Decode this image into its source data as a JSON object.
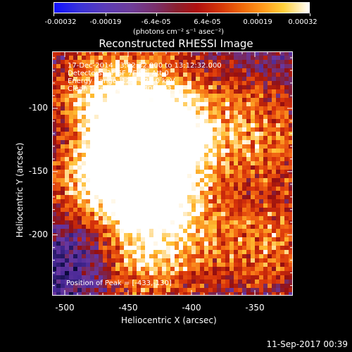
{
  "colorbar": {
    "tick_labels": [
      "-0.00032",
      "-0.00019",
      "-6.4e-05",
      "6.4e-05",
      "0.00019",
      "0.00032"
    ],
    "units_label": "(photons cm⁻² s⁻¹ asec⁻²)"
  },
  "plot": {
    "title": "Reconstructed RHESSI Image",
    "xlabel": "Heliocentric X (arcsec)",
    "ylabel": "Heliocentric Y (arcsec)",
    "x_ticks": [
      "-500",
      "-450",
      "-400",
      "-350"
    ],
    "y_ticks": [
      "-100",
      "-150",
      "-200"
    ]
  },
  "info": {
    "time_range": "17-Dec-2014 13:02:32.000 to 13:12:32.000",
    "detectors": "Detectors: 3F 6F 7F 9F, Att 0",
    "energy": "Energy Range: 12.0 - 25.0 keV",
    "method": "Clean    Total counts: 5.40E+03",
    "peak": "Position of Peak = [-433,-130]"
  },
  "footer": {
    "timestamp": "11-Sep-2017 00:39"
  },
  "chart_data": {
    "type": "heatmap",
    "title": "Reconstructed RHESSI Image",
    "xlabel": "Heliocentric X (arcsec)",
    "ylabel": "Heliocentric Y (arcsec)",
    "xlim": [
      -510,
      -320
    ],
    "ylim": [
      -248,
      -55
    ],
    "x_ticks": [
      -500,
      -450,
      -400,
      -350
    ],
    "y_ticks": [
      -100,
      -150,
      -200
    ],
    "colorbar_range": [
      -0.00032,
      0.00032
    ],
    "colorbar_ticks": [
      -0.00032,
      -0.00019,
      -6.4e-05,
      6.4e-05,
      0.00019,
      0.00032
    ],
    "peak_position": [
      -433,
      -130
    ]
  }
}
